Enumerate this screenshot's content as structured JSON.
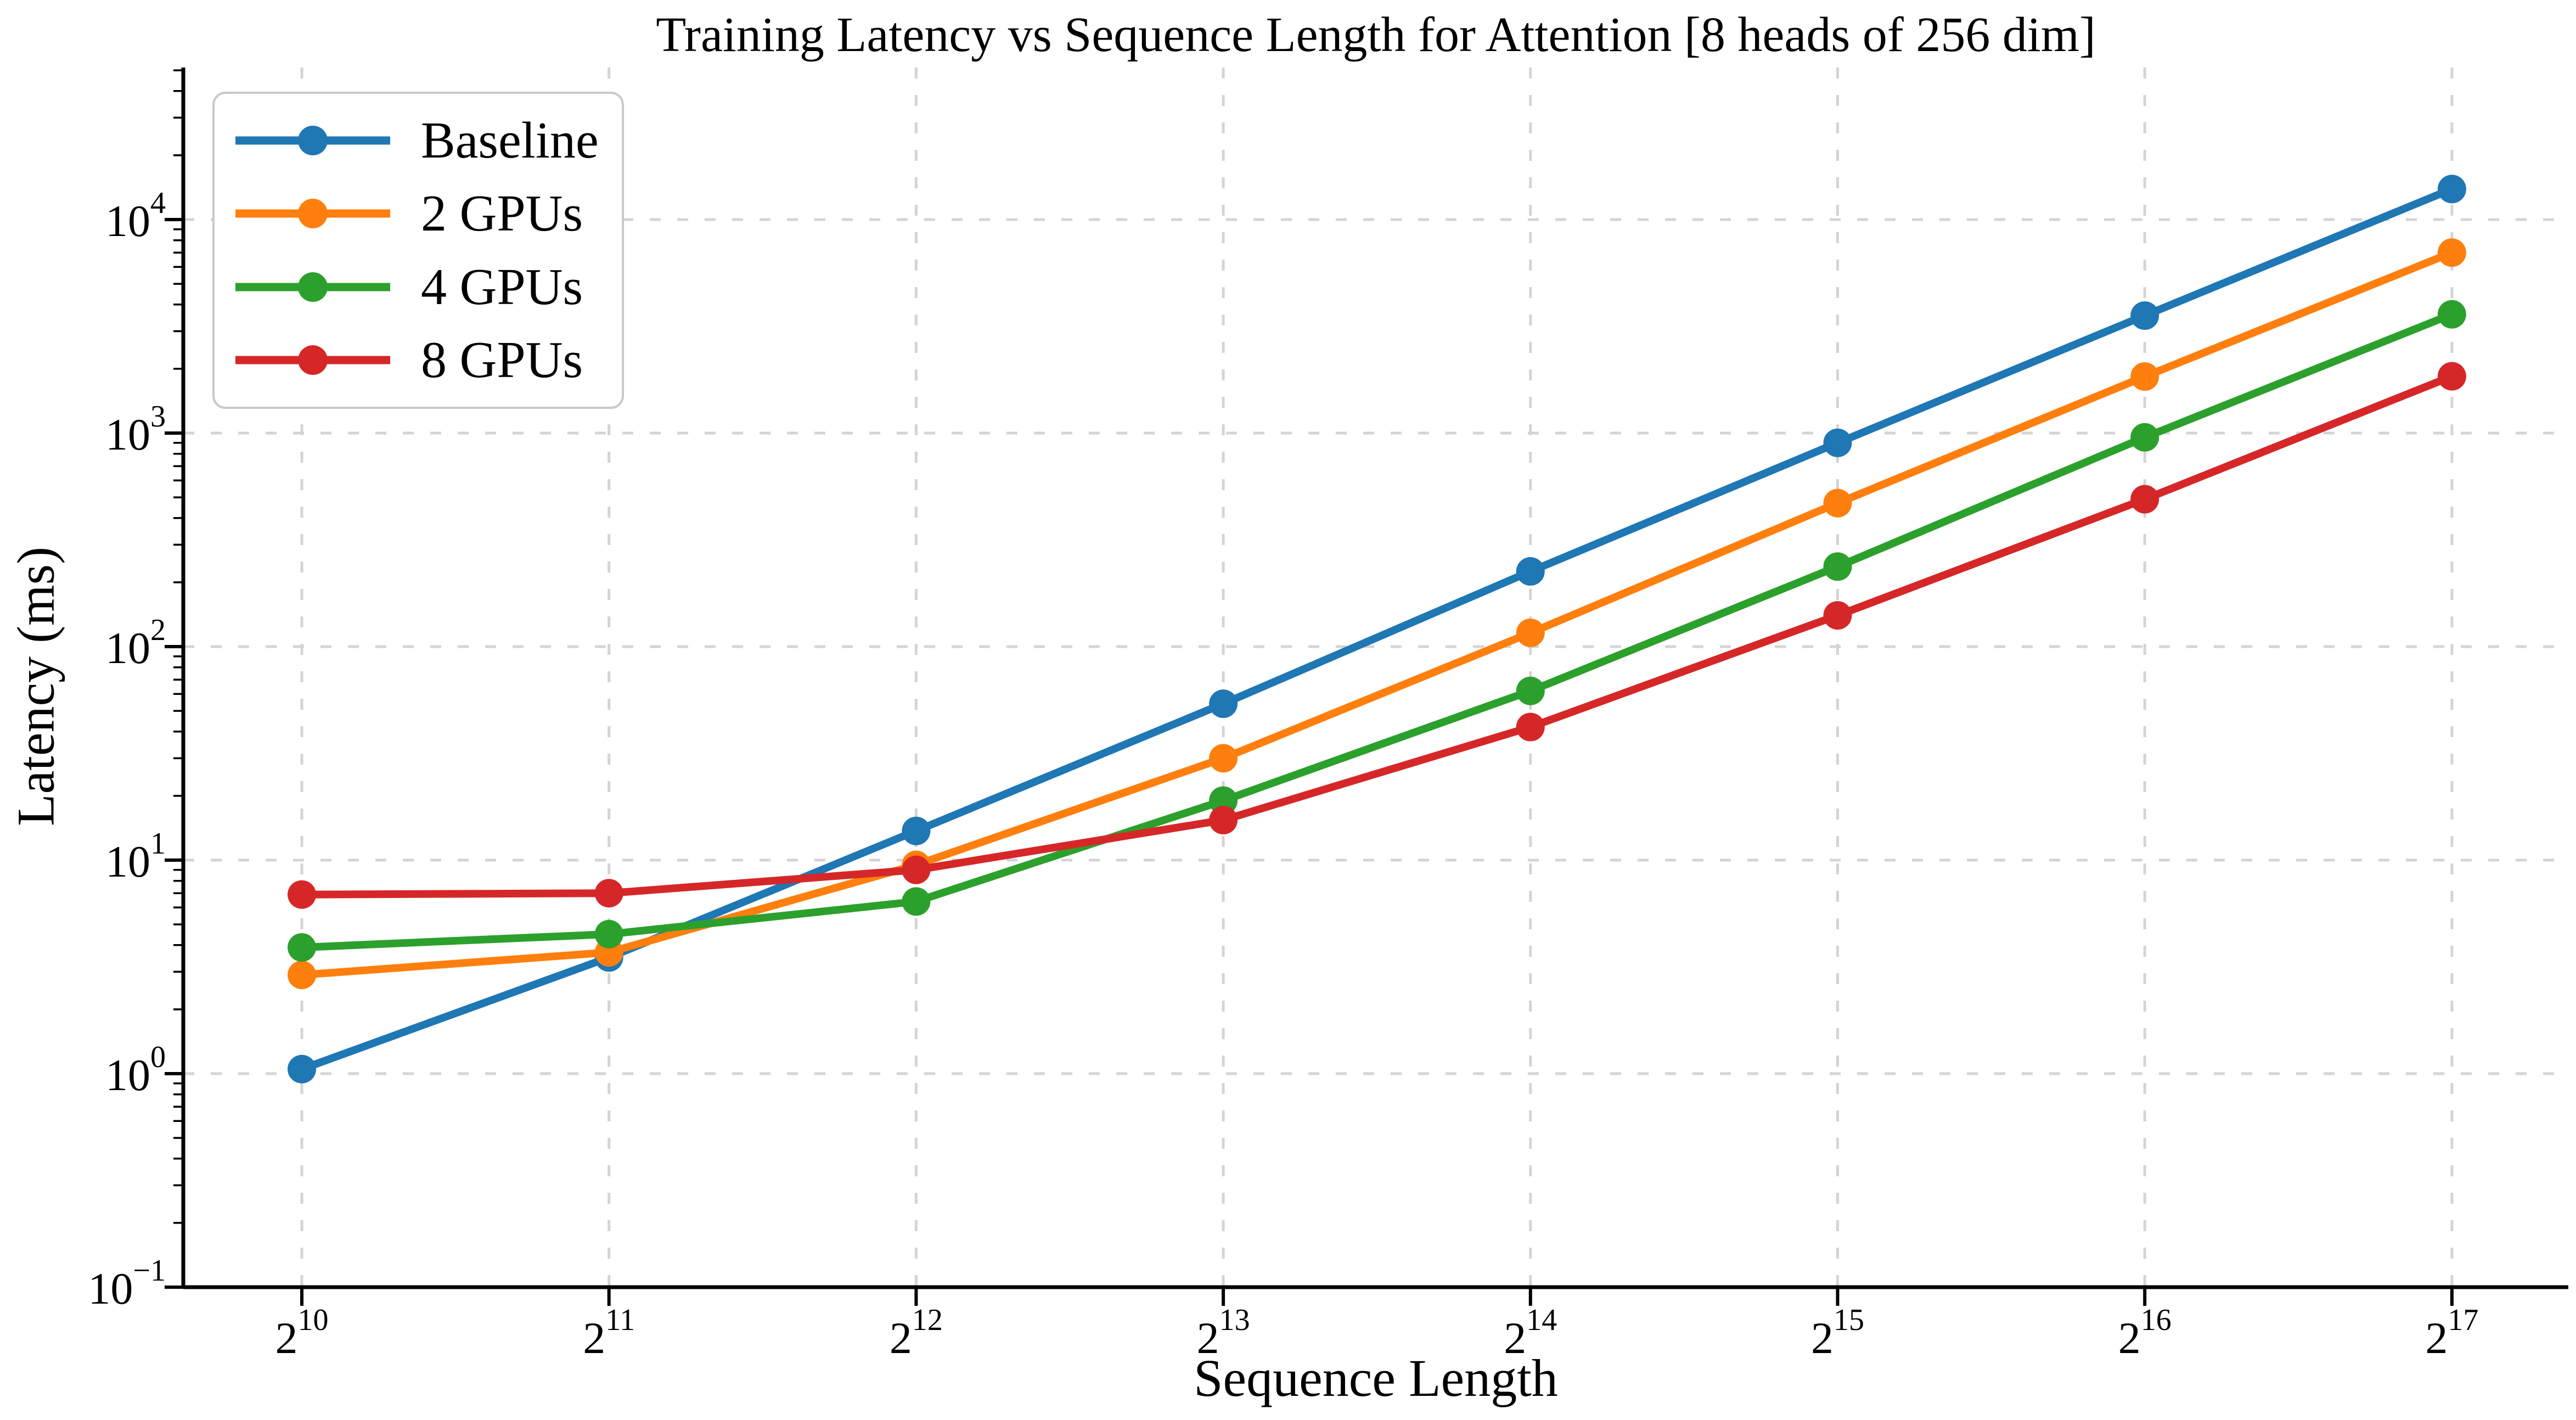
{
  "figure": {
    "title": "Training Latency vs Sequence Length for Attention [8 heads of 256 dim]",
    "xlabel": "Sequence Length",
    "ylabel": "Latency (ms)",
    "background_color": "#ffffff",
    "grid_color": "#d4d4d4",
    "spine_color": "#000000",
    "legend_border_color": "#c9c9c9"
  },
  "legend": {
    "position": "upper left",
    "entries": [
      {
        "label": "Baseline",
        "color": "#1f77b4"
      },
      {
        "label": "2 GPUs",
        "color": "#ff7f0e"
      },
      {
        "label": "4 GPUs",
        "color": "#2ca02c"
      },
      {
        "label": "8 GPUs",
        "color": "#d62728"
      }
    ]
  },
  "chart_data": {
    "type": "line",
    "title": "Training Latency vs Sequence Length for Attention [8 heads of 256 dim]",
    "xlabel": "Sequence Length",
    "ylabel": "Latency (ms)",
    "x_scale": "log2",
    "y_scale": "log10",
    "grid": true,
    "grid_style": "dashed",
    "legend_position": "upper left",
    "x_ticks": {
      "base": 2,
      "exponents": [
        10,
        11,
        12,
        13,
        14,
        15,
        16,
        17
      ]
    },
    "y_ticks": {
      "base": 10,
      "exponents": [
        -1,
        0,
        1,
        2,
        3,
        4
      ]
    },
    "x_values": [
      1024,
      2048,
      4096,
      8192,
      16384,
      32768,
      65536,
      131072
    ],
    "ylim": [
      0.1,
      50000
    ],
    "marker": "circle",
    "series": [
      {
        "name": "Baseline",
        "color": "#1f77b4",
        "values": [
          1.05,
          3.5,
          13.7,
          54,
          225,
          900,
          3550,
          13900
        ]
      },
      {
        "name": "2 GPUs",
        "color": "#ff7f0e",
        "values": [
          2.9,
          3.7,
          9.5,
          30,
          116,
          470,
          1840,
          7000
        ]
      },
      {
        "name": "4 GPUs",
        "color": "#2ca02c",
        "values": [
          3.9,
          4.5,
          6.4,
          19,
          62,
          237,
          955,
          3600
        ]
      },
      {
        "name": "8 GPUs",
        "color": "#d62728",
        "values": [
          6.9,
          7.0,
          9.0,
          15.4,
          42,
          140,
          490,
          1845
        ]
      }
    ]
  }
}
